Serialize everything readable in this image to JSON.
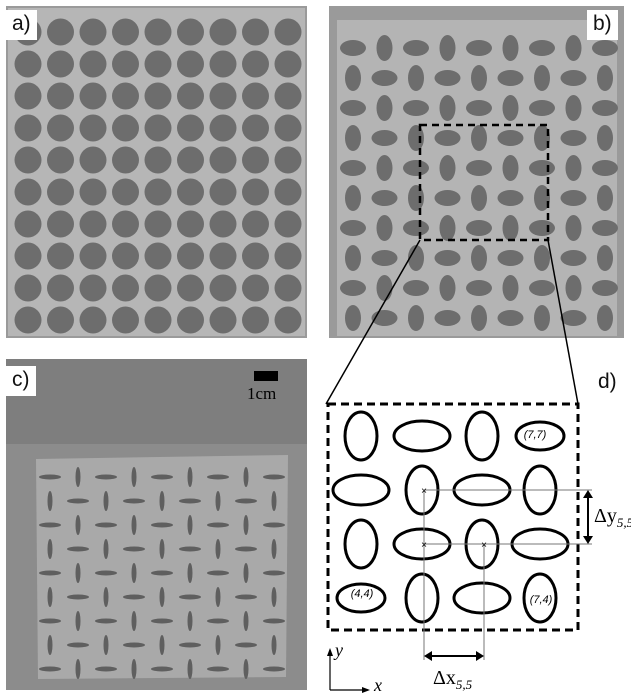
{
  "panels": {
    "a": {
      "label": "a)"
    },
    "b": {
      "label": "b)"
    },
    "c": {
      "label": "c)",
      "scale_bar_label": "1cm"
    },
    "d": {
      "label": "d)",
      "cell_labels": {
        "c77": "(7,7)",
        "c44": "(4,4)",
        "c74": "(7,4)"
      },
      "delta_y_symbol": "Δy",
      "delta_y_subscript": "5,5",
      "delta_x_symbol": "Δx",
      "delta_x_subscript": "5,5",
      "axis_y": "y",
      "axis_x": "x"
    }
  },
  "colors": {
    "sheet_gray": "#b4b4b4",
    "hole_gray": "#6d6d6d",
    "background_gray": "#8a8a8a",
    "outline_black": "#000000"
  }
}
